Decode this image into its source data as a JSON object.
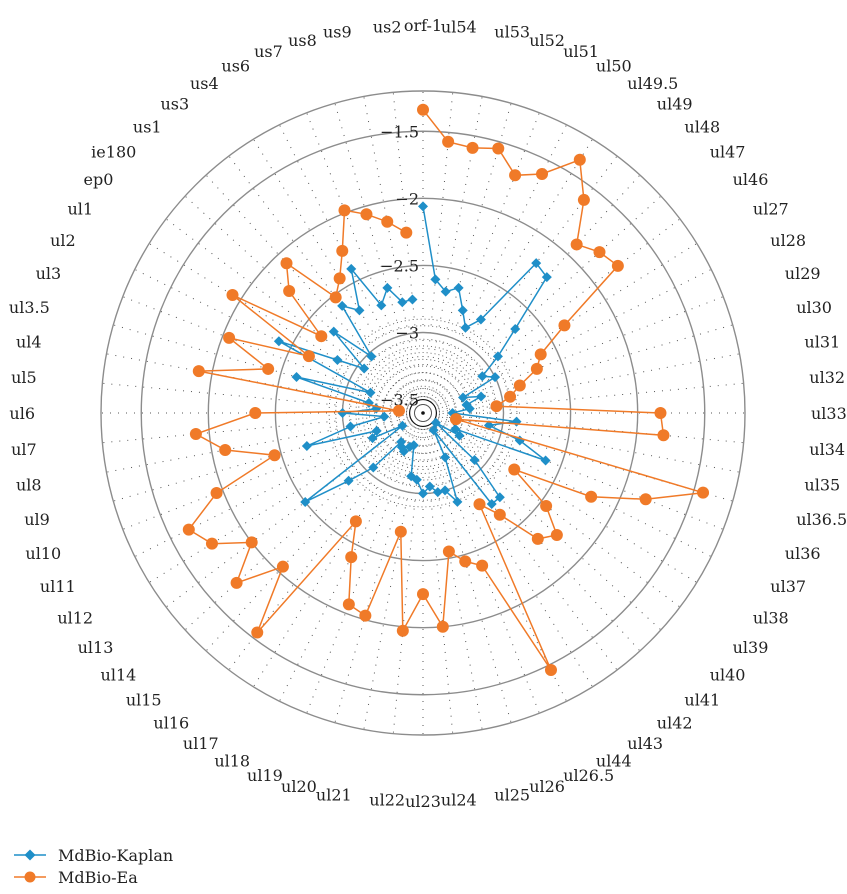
{
  "chart_data": {
    "type": "radar",
    "categories": [
      "orf-1",
      "ul54",
      "ul53",
      "ul52",
      "ul51",
      "ul50",
      "ul49.5",
      "ul49",
      "ul48",
      "ul47",
      "ul46",
      "ul27",
      "ul28",
      "ul29",
      "ul30",
      "ul31",
      "ul32",
      "ul33",
      "ul34",
      "ul35",
      "ul36.5",
      "ul36",
      "ul37",
      "ul38",
      "ul39",
      "ul40",
      "ul41",
      "ul42",
      "ul43",
      "ul44",
      "ul26.5",
      "ul26",
      "ul25",
      "ul24",
      "ul23",
      "ul22",
      "ul21",
      "ul20",
      "ul19",
      "ul18",
      "ul17",
      "ul16",
      "ul15",
      "ul14",
      "ul13",
      "ul12",
      "ul11",
      "ul10",
      "ul9",
      "ul8",
      "ul7",
      "ul6",
      "ul5",
      "ul4",
      "ul3.5",
      "ul3",
      "ul2",
      "ul1",
      "ep0",
      "ie180",
      "us1",
      "us3",
      "us4",
      "us6",
      "us7",
      "us8",
      "us9",
      "us2"
    ],
    "r_ticks": [
      -1.5,
      -2,
      -2.5,
      -3,
      -3.5
    ],
    "r_range": [
      -3.6,
      -1.2
    ],
    "series": [
      {
        "name": "MdBio-Kaplan",
        "color": "#1f8fc8",
        "marker": "diamond",
        "values": [
          -2.06,
          -2.6,
          -2.68,
          -2.63,
          -2.78,
          -2.89,
          -2.78,
          -2.2,
          -2.23,
          -2.67,
          -2.9,
          -3.08,
          -3.0,
          -3.28,
          -3.15,
          -3.27,
          -3.25,
          -3.38,
          -2.9,
          -3.1,
          -2.85,
          -2.62,
          -3.33,
          -3.28,
          -3.48,
          -3.08,
          -2.75,
          -2.75,
          -3.45,
          -3.23,
          -2.89,
          -3.0,
          -3.0,
          -3.05,
          -3.0,
          -3.1,
          -3.12,
          -3.35,
          -3.33,
          -3.28,
          -3.3,
          -3.33,
          -3.05,
          -2.85,
          -2.5,
          -3.42,
          -3.18,
          -3.23,
          -2.7,
          -3.05,
          -3.31,
          -3.0,
          -3.25,
          -3.19,
          -2.62,
          -3.18,
          -2.4,
          -2.85,
          -3.05,
          -2.7,
          -3.03,
          -2.6,
          -2.7,
          -2.4,
          -2.74,
          -2.63,
          -2.76,
          -2.75
        ]
      },
      {
        "name": "MdBio-Ea",
        "color": "#f07a28",
        "marker": "circle",
        "values": [
          -1.34,
          -1.57,
          -1.59,
          -1.55,
          -1.7,
          -1.61,
          -1.38,
          -1.61,
          -1.9,
          -1.82,
          -1.78,
          -2.36,
          -2.62,
          -2.69,
          -2.85,
          -2.94,
          -3.05,
          -1.83,
          -1.8,
          -3.35,
          -1.43,
          -1.82,
          -2.2,
          -2.8,
          -2.45,
          -2.25,
          -2.33,
          -2.65,
          -2.8,
          -1.46,
          -2.38,
          -2.45,
          -2.55,
          -2.0,
          -2.25,
          -1.97,
          -2.7,
          -2.03,
          -2.07,
          -2.4,
          -2.65,
          -1.55,
          -2.05,
          -1.72,
          -2.0,
          -1.75,
          -1.65,
          -1.95,
          -2.45,
          -2.1,
          -1.9,
          -2.35,
          -3.42,
          -1.9,
          -2.4,
          -2.05,
          -2.65,
          -1.93,
          -2.65,
          -2.25,
          -2.09,
          -2.52,
          -2.42,
          -2.25,
          -1.98,
          -2.06,
          -2.15,
          -2.25
        ]
      }
    ]
  },
  "legend": {
    "items": [
      {
        "label": "MdBio-Kaplan",
        "color": "#1f8fc8",
        "marker": "diamond"
      },
      {
        "label": "MdBio-Ea",
        "color": "#f07a28",
        "marker": "circle"
      }
    ]
  }
}
